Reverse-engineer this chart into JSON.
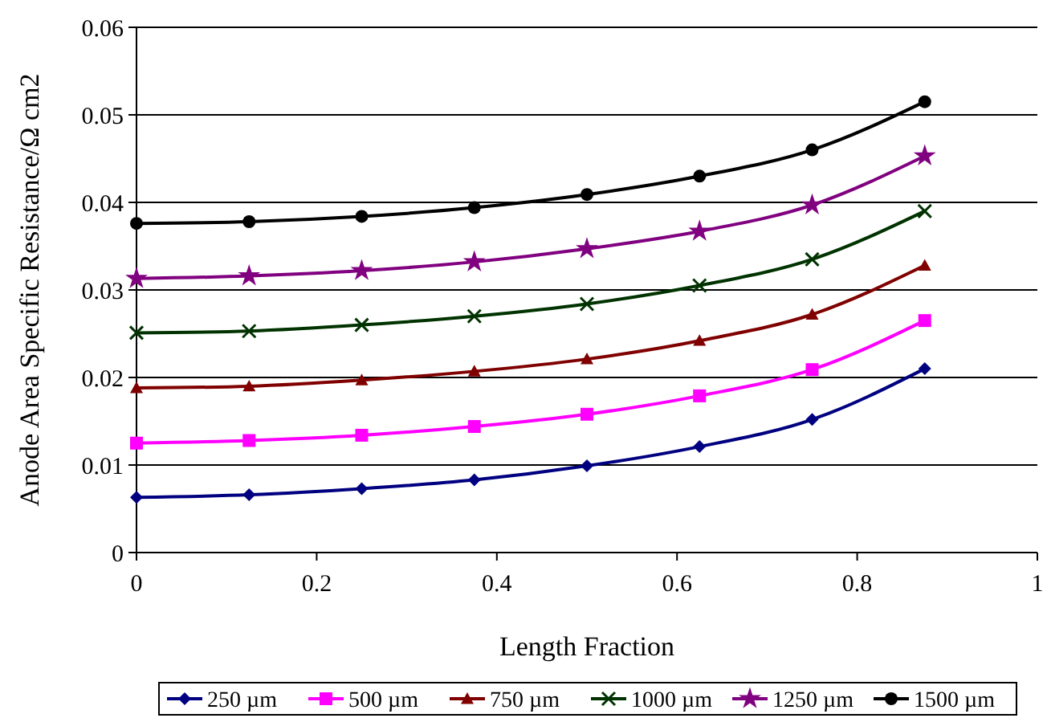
{
  "chart_data": {
    "type": "line",
    "xlabel": "Length Fraction",
    "ylabel": "Anode Area Specific Resistance/Ω cm2",
    "x": [
      0,
      0.125,
      0.25,
      0.375,
      0.5,
      0.625,
      0.75,
      0.875
    ],
    "xlim": [
      0,
      1
    ],
    "xticks": [
      0,
      0.2,
      0.4,
      0.6,
      0.8,
      1
    ],
    "ylim": [
      0,
      0.06
    ],
    "yticks": [
      0,
      0.01,
      0.02,
      0.03,
      0.04,
      0.05,
      0.06
    ],
    "grid": "y",
    "legend": "bottom",
    "series": [
      {
        "name": "250 µm",
        "color": "#000080",
        "marker": "diamond",
        "values": [
          0.0063,
          0.0066,
          0.0073,
          0.0083,
          0.0099,
          0.0121,
          0.0152,
          0.021
        ]
      },
      {
        "name": "500 µm",
        "color": "#ff00ff",
        "marker": "square",
        "values": [
          0.0125,
          0.0128,
          0.0134,
          0.0144,
          0.0158,
          0.0179,
          0.0209,
          0.0265
        ]
      },
      {
        "name": "750 µm",
        "color": "#800000",
        "marker": "triangle",
        "values": [
          0.0188,
          0.019,
          0.0197,
          0.0207,
          0.0221,
          0.0242,
          0.0272,
          0.0328
        ]
      },
      {
        "name": "1000 µm",
        "color": "#003300",
        "marker": "cross",
        "values": [
          0.0251,
          0.0253,
          0.026,
          0.027,
          0.0284,
          0.0305,
          0.0335,
          0.039
        ]
      },
      {
        "name": "1250 µm",
        "color": "#800080",
        "marker": "star",
        "values": [
          0.0313,
          0.0316,
          0.0322,
          0.0332,
          0.0347,
          0.0367,
          0.0397,
          0.0453
        ]
      },
      {
        "name": "1500 µm",
        "color": "#000000",
        "marker": "circle",
        "values": [
          0.0376,
          0.0378,
          0.0384,
          0.0394,
          0.0409,
          0.043,
          0.046,
          0.0515
        ]
      }
    ]
  }
}
